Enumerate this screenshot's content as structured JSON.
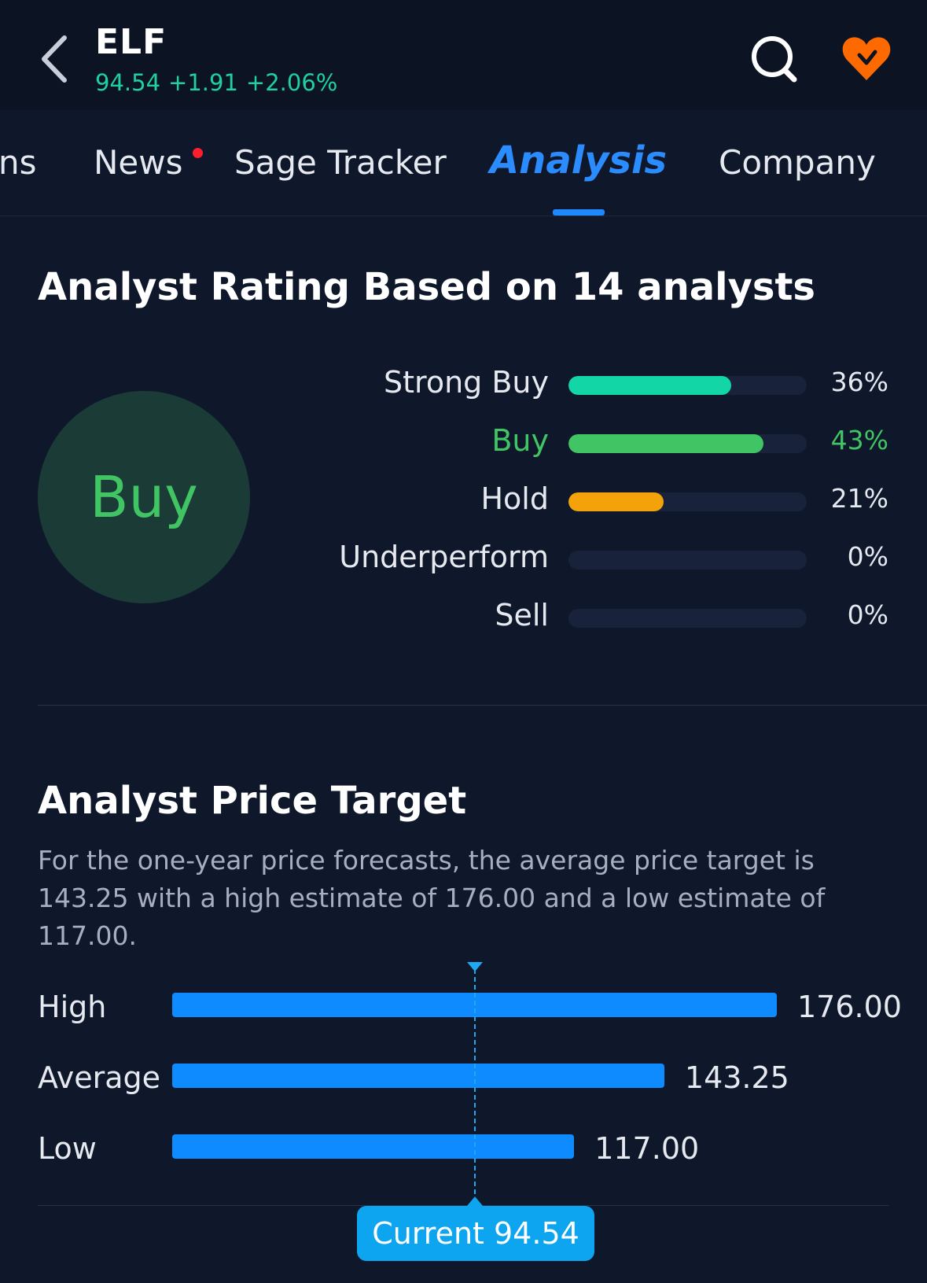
{
  "header": {
    "ticker": "ELF",
    "price": "94.54",
    "change": "+1.91",
    "change_pct": "+2.06%",
    "accent_color": "#1fd0a0",
    "icons": [
      "chevron-left-icon",
      "search-icon",
      "heart-icon"
    ]
  },
  "tabs": [
    {
      "label": "ns"
    },
    {
      "label": "News",
      "has_dot": true
    },
    {
      "label": "Sage Tracker"
    },
    {
      "label": "Analysis",
      "active": true
    },
    {
      "label": "Company"
    }
  ],
  "analyst_rating": {
    "title": "Analyst Rating Based on 14 analysts",
    "consensus": "Buy",
    "consensus_color": "#41c464",
    "rows": [
      {
        "label": "Strong Buy",
        "percent": 36,
        "display": "36%",
        "color": "#13d6a6"
      },
      {
        "label": "Buy",
        "percent": 43,
        "display": "43%",
        "color": "#41c464",
        "highlight": true
      },
      {
        "label": "Hold",
        "percent": 21,
        "display": "21%",
        "color": "#f4a20a"
      },
      {
        "label": "Underperform",
        "percent": 0,
        "display": "0%",
        "color": "#18223a"
      },
      {
        "label": "Sell",
        "percent": 0,
        "display": "0%",
        "color": "#18223a"
      }
    ]
  },
  "price_target": {
    "title": "Analyst Price Target",
    "description": "For the one-year price forecasts, the average price target is 143.25 with a high estimate of 176.00 and a low estimate of 117.00.",
    "rows": [
      {
        "label": "High",
        "value": 176.0,
        "display": "176.00"
      },
      {
        "label": "Average",
        "value": 143.25,
        "display": "143.25"
      },
      {
        "label": "Low",
        "value": 117.0,
        "display": "117.00"
      }
    ],
    "current": {
      "label": "Current 94.54",
      "value": 94.54
    },
    "bar_color": "#0d8bff",
    "current_color": "#0ea5f0"
  }
}
